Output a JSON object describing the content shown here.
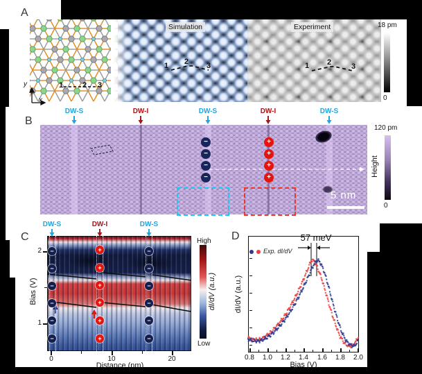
{
  "sym": {
    "minus": "−",
    "plus": "+"
  },
  "colors": {
    "dw_s": "#1fa7e0",
    "dw_i": "#b01116",
    "minus_charge": "#17255c",
    "plus_charge": "#e5140e",
    "series_blue": "#2c3a90",
    "series_red": "#ef4040"
  },
  "panels": {
    "a": {
      "label": "A",
      "simulation_tag": "Simulation",
      "experiment_tag": "Experiment",
      "sites": [
        "1",
        "2",
        "3"
      ],
      "axis": {
        "x": "x",
        "y": "y"
      },
      "colorbar": {
        "max": "18 pm",
        "min": "0"
      }
    },
    "b": {
      "label": "B",
      "dw": [
        {
          "text": "DW-S"
        },
        {
          "text": "DW-I"
        },
        {
          "text": "DW-S"
        },
        {
          "text": "DW-I"
        },
        {
          "text": "DW-S"
        }
      ],
      "scalebar": "5 nm",
      "colorbar": {
        "max": "120 pm",
        "min": "0",
        "axis": "Height"
      }
    },
    "c": {
      "label": "C",
      "dw": [
        {
          "text": "DW-S"
        },
        {
          "text": "DW-I"
        },
        {
          "text": "DW-S"
        }
      ],
      "ylabel": "Bias (V)",
      "xlabel": "Distance (nm)",
      "y_ticks": [
        "2",
        "1"
      ],
      "x_ticks": [
        "0",
        "10",
        "20"
      ],
      "colorbar": {
        "high": "High",
        "low": "Low",
        "label": "dI/dV (a.u.)"
      }
    },
    "d": {
      "label": "D",
      "annotation": "57 meV",
      "legend": "Exp. dI/dV",
      "ylabel": "dI/dV (a.u.)",
      "xlabel": "Bias (V)",
      "x_ticks": [
        "0.8",
        "1.0",
        "1.2",
        "1.4",
        "1.6",
        "1.8",
        "2.0"
      ]
    }
  },
  "chart_data": [
    {
      "panel": "C",
      "type": "heatmap",
      "xlabel": "Distance (nm)",
      "ylabel": "Bias (V)",
      "xlim": [
        0,
        23
      ],
      "x_ticks": [
        0,
        10,
        20
      ],
      "y_ticks": [
        1,
        2
      ],
      "colorbar": {
        "high": "High",
        "low": "Low",
        "label": "dI/dV (a.u.)"
      },
      "domain_walls": [
        {
          "name": "DW-S",
          "x_nm": 0.8
        },
        {
          "name": "DW-I",
          "x_nm": 8.2
        },
        {
          "name": "DW-S",
          "x_nm": 16.3
        }
      ],
      "description_bands": [
        {
          "bias_range": [
            1.55,
            2.1
          ],
          "value": "low (dark blue)"
        },
        {
          "bias_range": [
            1.3,
            1.55
          ],
          "value": "high (red band)"
        },
        {
          "bias_range": [
            0.8,
            1.3
          ],
          "value": "medium-low (blue)"
        }
      ]
    },
    {
      "panel": "D",
      "type": "scatter",
      "xlabel": "Bias (V)",
      "ylabel": "dI/dV (a.u.)",
      "xlim": [
        0.8,
        2.0
      ],
      "annotation": "57 meV",
      "peak_separation_meV": 57,
      "legend": "Exp. dI/dV",
      "series": [
        {
          "name": "Exp. dI/dV (red)",
          "color": "#ef4040",
          "peak_bias": 1.49,
          "points": [
            [
              0.8,
              0.125
            ],
            [
              0.85,
              0.105
            ],
            [
              0.9,
              0.1
            ],
            [
              0.95,
              0.115
            ],
            [
              1.0,
              0.15
            ],
            [
              1.05,
              0.19
            ],
            [
              1.1,
              0.245
            ],
            [
              1.15,
              0.305
            ],
            [
              1.2,
              0.375
            ],
            [
              1.25,
              0.46
            ],
            [
              1.3,
              0.555
            ],
            [
              1.35,
              0.66
            ],
            [
              1.4,
              0.775
            ],
            [
              1.45,
              0.9
            ],
            [
              1.49,
              1.0
            ],
            [
              1.52,
              0.99
            ],
            [
              1.55,
              0.93
            ],
            [
              1.6,
              0.8
            ],
            [
              1.65,
              0.62
            ],
            [
              1.7,
              0.44
            ],
            [
              1.75,
              0.28
            ],
            [
              1.8,
              0.145
            ],
            [
              1.85,
              0.065
            ],
            [
              1.9,
              0.03
            ],
            [
              1.95,
              0.045
            ],
            [
              2.0,
              0.13
            ]
          ]
        },
        {
          "name": "Exp. dI/dV (blue)",
          "color": "#2c3a90",
          "peak_bias": 1.547,
          "points": [
            [
              0.8,
              0.11
            ],
            [
              0.85,
              0.095
            ],
            [
              0.9,
              0.09
            ],
            [
              0.95,
              0.1
            ],
            [
              1.0,
              0.125
            ],
            [
              1.05,
              0.16
            ],
            [
              1.1,
              0.21
            ],
            [
              1.15,
              0.265
            ],
            [
              1.2,
              0.33
            ],
            [
              1.25,
              0.405
            ],
            [
              1.3,
              0.49
            ],
            [
              1.35,
              0.585
            ],
            [
              1.4,
              0.69
            ],
            [
              1.45,
              0.8
            ],
            [
              1.5,
              0.92
            ],
            [
              1.547,
              1.0
            ],
            [
              1.58,
              0.985
            ],
            [
              1.62,
              0.9
            ],
            [
              1.67,
              0.73
            ],
            [
              1.72,
              0.53
            ],
            [
              1.77,
              0.345
            ],
            [
              1.82,
              0.19
            ],
            [
              1.87,
              0.09
            ],
            [
              1.92,
              0.04
            ],
            [
              1.96,
              0.035
            ],
            [
              2.0,
              0.095
            ]
          ]
        }
      ]
    }
  ]
}
